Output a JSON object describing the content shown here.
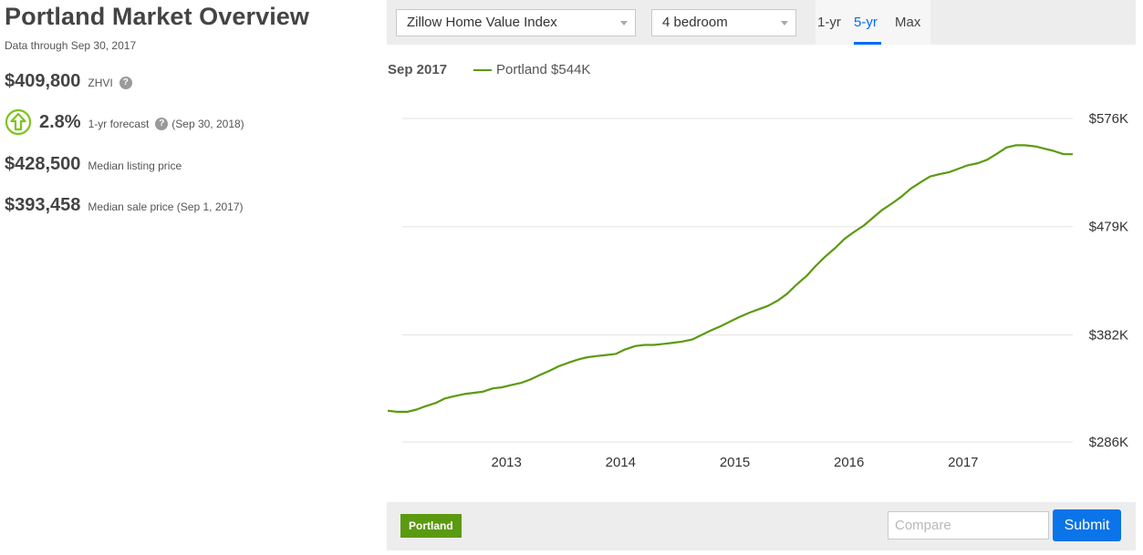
{
  "header": {
    "title": "Portland Market Overview",
    "data_through": "Data through Sep 30, 2017"
  },
  "metrics": {
    "zhvi": {
      "value": "$409,800",
      "label": "ZHVI",
      "help": "?"
    },
    "forecast": {
      "value": "2.8%",
      "label": "1-yr forecast",
      "help": "?",
      "date": "(Sep 30, 2018)",
      "icon": "arrow-up-circle-icon",
      "color": "#7dc41c"
    },
    "listing": {
      "value": "$428,500",
      "label": "Median listing price"
    },
    "sale": {
      "value": "$393,458",
      "label": "Median sale price (Sep 1, 2017)"
    }
  },
  "controls": {
    "index_select": "Zillow Home Value Index",
    "bedroom_select": "4 bedroom",
    "ranges": [
      "1-yr",
      "5-yr",
      "Max"
    ],
    "active_range": "5-yr"
  },
  "legend": {
    "date": "Sep 2017",
    "series_label": "Portland $544K"
  },
  "chart_data": {
    "type": "line",
    "series": [
      {
        "name": "Portland",
        "color": "#5b9a10",
        "points": [
          [
            2011.96,
            314
          ],
          [
            2012.04,
            313
          ],
          [
            2012.13,
            313
          ],
          [
            2012.21,
            315
          ],
          [
            2012.29,
            318
          ],
          [
            2012.38,
            321
          ],
          [
            2012.46,
            325
          ],
          [
            2012.54,
            327
          ],
          [
            2012.63,
            329
          ],
          [
            2012.71,
            330
          ],
          [
            2012.79,
            331
          ],
          [
            2012.88,
            334
          ],
          [
            2012.96,
            335
          ],
          [
            2013.04,
            337
          ],
          [
            2013.13,
            339
          ],
          [
            2013.21,
            342
          ],
          [
            2013.29,
            346
          ],
          [
            2013.38,
            350
          ],
          [
            2013.46,
            354
          ],
          [
            2013.54,
            357
          ],
          [
            2013.63,
            360
          ],
          [
            2013.71,
            362
          ],
          [
            2013.79,
            363
          ],
          [
            2013.88,
            364
          ],
          [
            2013.96,
            365
          ],
          [
            2014.04,
            369
          ],
          [
            2014.13,
            372
          ],
          [
            2014.21,
            373
          ],
          [
            2014.29,
            373
          ],
          [
            2014.38,
            374
          ],
          [
            2014.46,
            375
          ],
          [
            2014.54,
            376
          ],
          [
            2014.63,
            378
          ],
          [
            2014.71,
            382
          ],
          [
            2014.79,
            386
          ],
          [
            2014.88,
            390
          ],
          [
            2014.96,
            394
          ],
          [
            2015.04,
            398
          ],
          [
            2015.13,
            402
          ],
          [
            2015.21,
            405
          ],
          [
            2015.29,
            408
          ],
          [
            2015.38,
            413
          ],
          [
            2015.46,
            419
          ],
          [
            2015.54,
            427
          ],
          [
            2015.63,
            435
          ],
          [
            2015.71,
            444
          ],
          [
            2015.79,
            452
          ],
          [
            2015.88,
            460
          ],
          [
            2015.96,
            468
          ],
          [
            2016.04,
            474
          ],
          [
            2016.13,
            480
          ],
          [
            2016.21,
            487
          ],
          [
            2016.29,
            494
          ],
          [
            2016.38,
            500
          ],
          [
            2016.46,
            506
          ],
          [
            2016.54,
            513
          ],
          [
            2016.63,
            519
          ],
          [
            2016.71,
            524
          ],
          [
            2016.79,
            526
          ],
          [
            2016.88,
            528
          ],
          [
            2016.96,
            531
          ],
          [
            2017.04,
            534
          ],
          [
            2017.13,
            536
          ],
          [
            2017.21,
            539
          ],
          [
            2017.29,
            544
          ],
          [
            2017.38,
            550
          ],
          [
            2017.46,
            552
          ],
          [
            2017.54,
            552
          ],
          [
            2017.63,
            551
          ],
          [
            2017.71,
            549
          ],
          [
            2017.79,
            547
          ],
          [
            2017.88,
            544
          ],
          [
            2017.96,
            544
          ]
        ]
      }
    ],
    "x_ticks": [
      "2013",
      "2014",
      "2015",
      "2016",
      "2017"
    ],
    "y_ticks": [
      "$576K",
      "$479K",
      "$382K",
      "$286K"
    ],
    "y_range": [
      286,
      576
    ],
    "x_range": [
      2011.96,
      2017.96
    ],
    "grid": true
  },
  "footer": {
    "tag": "Portland",
    "tag_color": "#5b9a10",
    "compare_placeholder": "Compare",
    "submit_label": "Submit"
  }
}
